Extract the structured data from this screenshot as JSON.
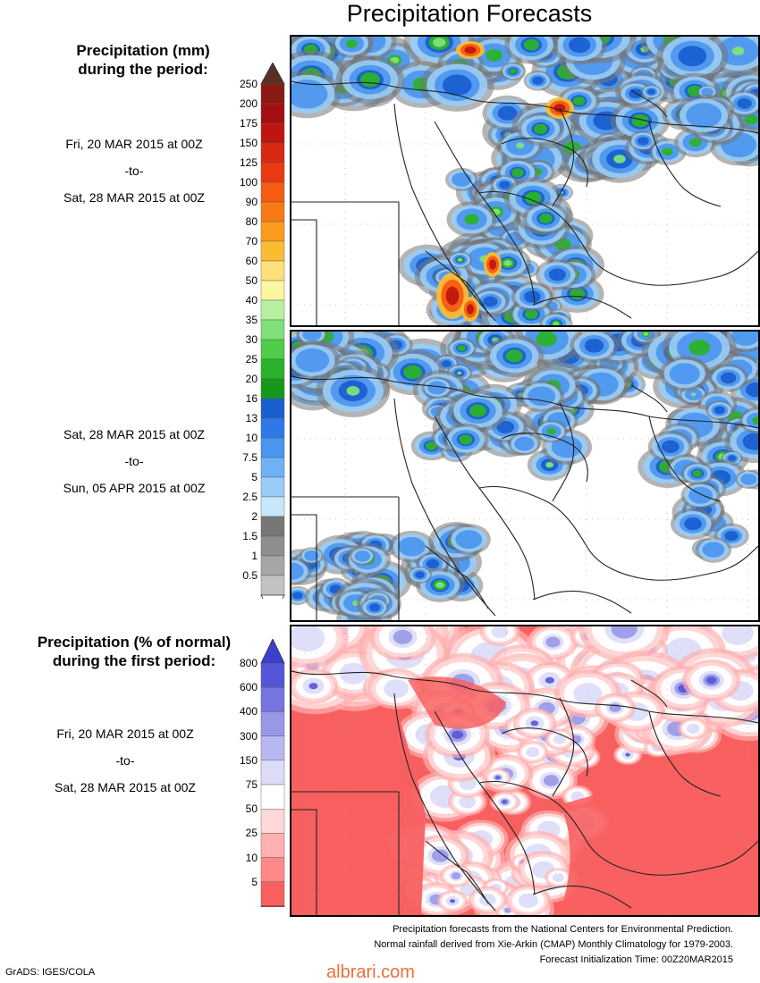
{
  "title": "Precipitation Forecasts",
  "left_panel": {
    "mm_header_line1": "Precipitation (mm)",
    "mm_header_line2": "during the period:",
    "period1": {
      "from": "Fri, 20 MAR 2015 at 00Z",
      "sep": "-to-",
      "to": "Sat, 28 MAR 2015 at 00Z"
    },
    "period2": {
      "from": "Sat, 28 MAR 2015 at 00Z",
      "sep": "-to-",
      "to": "Sun, 05 APR 2015 at 00Z"
    },
    "pct_header_line1": "Precipitation (% of normal)",
    "pct_header_line2": "during the first period:",
    "period3": {
      "from": "Fri, 20 MAR 2015 at 00Z",
      "sep": "-to-",
      "to": "Sat, 28 MAR 2015 at 00Z"
    }
  },
  "colorbar_mm": {
    "labels": [
      "250",
      "200",
      "175",
      "150",
      "125",
      "100",
      "90",
      "80",
      "70",
      "60",
      "50",
      "40",
      "35",
      "30",
      "25",
      "20",
      "16",
      "13",
      "10",
      "7.5",
      "5",
      "2.5",
      "2",
      "1.5",
      "1",
      "0.5"
    ],
    "colors": [
      "#8b1a10",
      "#a50f0f",
      "#c0150f",
      "#d82a12",
      "#eb3a12",
      "#f55b12",
      "#f97a14",
      "#fa9a1e",
      "#fbbc32",
      "#fde07a",
      "#fdf5a0",
      "#b6f0a0",
      "#7fe07a",
      "#4fcc4a",
      "#2ab22a",
      "#16991a",
      "#1a5fd0",
      "#2e78e8",
      "#4a95f0",
      "#6fb1f5",
      "#99cdf8",
      "#c6e6fa",
      "#777777",
      "#8e8e8e",
      "#a6a6a6",
      "#c2c2c2"
    ],
    "top_triangle": "#5a3024",
    "bottom_triangle": "#ffffff"
  },
  "colorbar_pct": {
    "labels": [
      "800",
      "600",
      "400",
      "300",
      "150",
      "75",
      "50",
      "25",
      "10",
      "5"
    ],
    "colors": [
      "#5555d8",
      "#7575df",
      "#9898e8",
      "#b8b8f0",
      "#dcdcf8",
      "#ffffff",
      "#ffd8d8",
      "#ffb0b0",
      "#ff8888",
      "#f86060"
    ],
    "top_triangle": "#3f3fcf",
    "bottom_triangle": "#f04444"
  },
  "maps": {
    "land_color": "#ffffff",
    "border_color": "#222222",
    "grid_color": "#9a9a9a"
  },
  "footer": {
    "line1": "Precipitation forecasts from the National Centers for Environmental Prediction.",
    "line2": "Normal rainfall derived from Xie-Arkin (CMAP) Monthly Climatology for 1979-2003.",
    "line3": "Forecast Initialization Time: 00Z20MAR2015"
  },
  "credit": "GrADS: IGES/COLA",
  "brand": "albrari.com"
}
